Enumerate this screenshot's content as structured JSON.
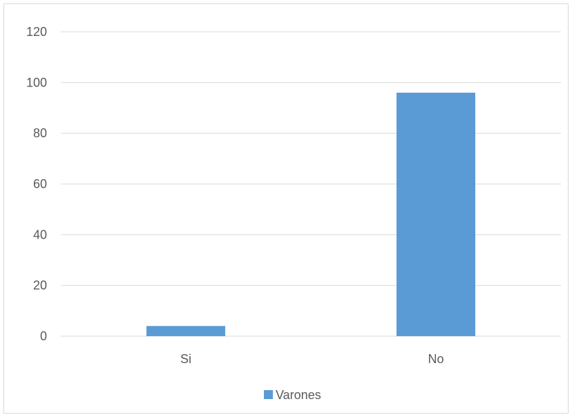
{
  "chart_data": {
    "type": "bar",
    "categories": [
      "Si",
      "No"
    ],
    "series": [
      {
        "name": "Varones",
        "values": [
          4,
          96
        ],
        "color": "#5b9bd5"
      }
    ],
    "ylim": [
      0,
      120
    ],
    "yticks": [
      "0",
      "20",
      "40",
      "60",
      "80",
      "100",
      "120"
    ],
    "grid": true,
    "gridColor": "#d9d9d9",
    "legend": {
      "position": "bottom"
    }
  }
}
